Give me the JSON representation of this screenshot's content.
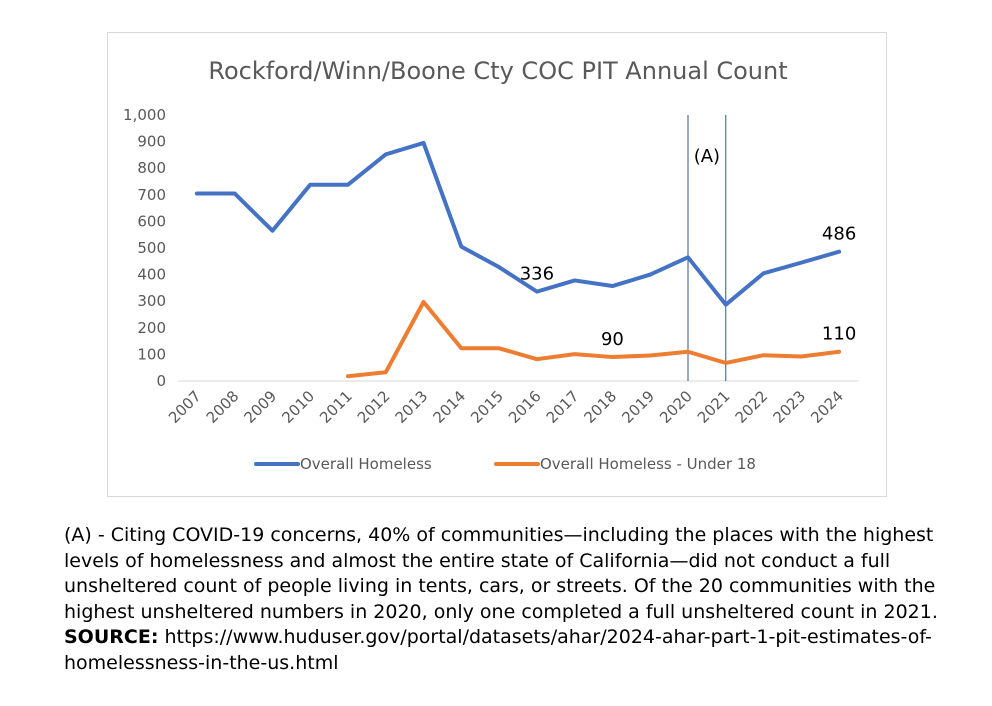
{
  "chart_data": {
    "type": "line",
    "title": "Rockford/Winn/Boone Cty COC PIT Annual Count",
    "categories": [
      "2007",
      "2008",
      "2009",
      "2010",
      "2011",
      "2012",
      "2013",
      "2014",
      "2015",
      "2016",
      "2017",
      "2018",
      "2019",
      "2020",
      "2021",
      "2022",
      "2023",
      "2024"
    ],
    "series": [
      {
        "name": "Overall Homeless",
        "color": "#4472C4",
        "values": [
          705,
          705,
          565,
          738,
          738,
          852,
          895,
          505,
          428,
          336,
          378,
          357,
          400,
          465,
          287,
          405,
          445,
          486
        ]
      },
      {
        "name": "Overall Homeless - Under 18",
        "color": "#ED7D31",
        "values": [
          null,
          null,
          null,
          null,
          18,
          33,
          297,
          123,
          123,
          82,
          101,
          90,
          96,
          110,
          68,
          97,
          92,
          110
        ]
      }
    ],
    "y_ticks": [
      "0",
      "100",
      "200",
      "300",
      "400",
      "500",
      "600",
      "700",
      "800",
      "900",
      "1,000"
    ],
    "ylim": [
      0,
      1000
    ],
    "grid": false,
    "legend": "bottom",
    "data_labels": [
      {
        "series": 0,
        "index": 9,
        "text": "336"
      },
      {
        "series": 0,
        "index": 17,
        "text": "486"
      },
      {
        "series": 1,
        "index": 11,
        "text": "90"
      },
      {
        "series": 1,
        "index": 17,
        "text": "110"
      }
    ],
    "annotation": {
      "label": "(A)",
      "from": "2020",
      "to": "2021"
    }
  },
  "footnote": {
    "text": "(A) - Citing COVID-19 concerns, 40% of communities—including the places with the highest levels of homelessness and almost the entire state of California—did not conduct a full unsheltered count of people living in tents, cars, or streets. Of the 20 communities with the highest unsheltered numbers in 2020, only one completed a full unsheltered count in 2021.",
    "source_label": "SOURCE:",
    "source_url": "https://www.huduser.gov/portal/datasets/ahar/2024-ahar-part-1-pit-estimates-of-homelessness-in-the-us.html"
  }
}
